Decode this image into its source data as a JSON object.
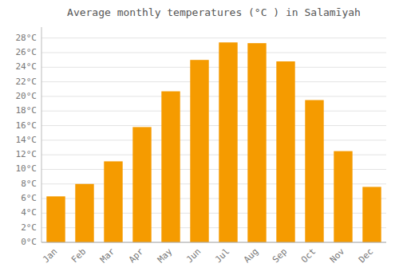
{
  "chart_data": {
    "type": "bar",
    "title": "Average monthly temperatures (°C ) in Salamīyah",
    "categories": [
      "Jan",
      "Feb",
      "Mar",
      "Apr",
      "May",
      "Jun",
      "Jul",
      "Aug",
      "Sep",
      "Oct",
      "Nov",
      "Dec"
    ],
    "values": [
      6.3,
      8.0,
      11.1,
      15.8,
      20.7,
      25.0,
      27.4,
      27.3,
      24.8,
      19.5,
      12.5,
      7.6
    ],
    "color": "#F59B00",
    "ylim": [
      0,
      29.5
    ],
    "yticks": [
      {
        "value": 0,
        "label": "0°C"
      },
      {
        "value": 2,
        "label": "2°C"
      },
      {
        "value": 4,
        "label": "4°C"
      },
      {
        "value": 6,
        "label": "6°C"
      },
      {
        "value": 8,
        "label": "8°C"
      },
      {
        "value": 10,
        "label": "10°C"
      },
      {
        "value": 12,
        "label": "12°C"
      },
      {
        "value": 14,
        "label": "14°C"
      },
      {
        "value": 16,
        "label": "16°C"
      },
      {
        "value": 18,
        "label": "18°C"
      },
      {
        "value": 20,
        "label": "20°C"
      },
      {
        "value": 22,
        "label": "22°C"
      },
      {
        "value": 24,
        "label": "24°C"
      },
      {
        "value": 26,
        "label": "26°C"
      },
      {
        "value": 28,
        "label": "28°C"
      }
    ],
    "grid": true
  }
}
